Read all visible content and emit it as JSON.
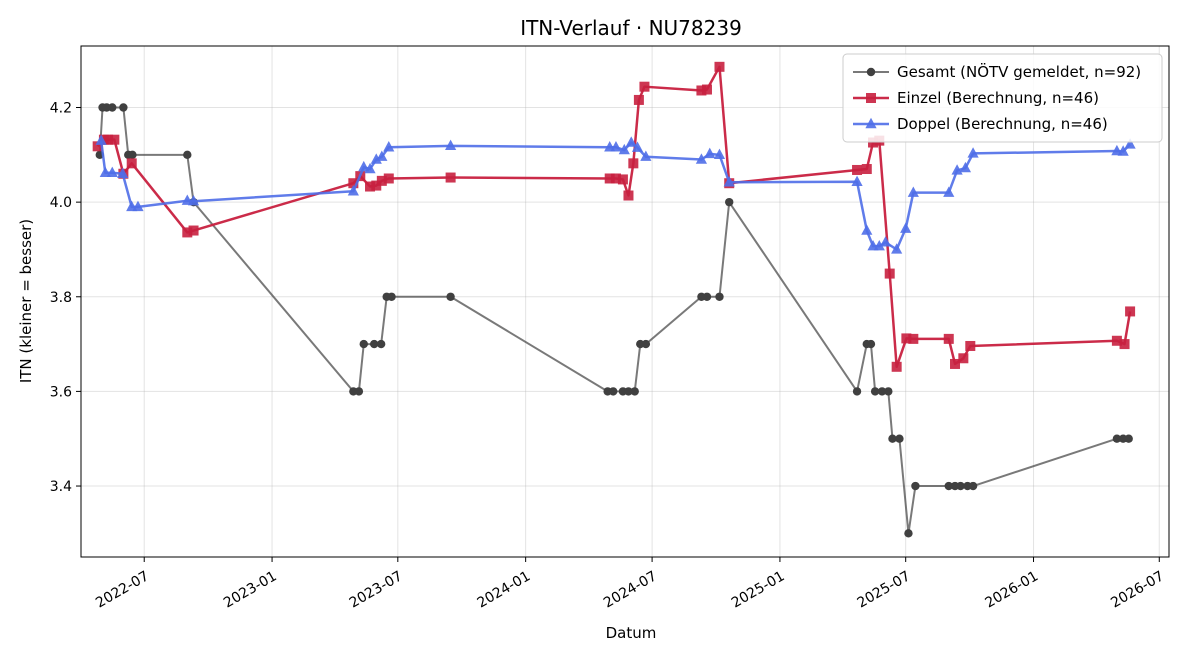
{
  "chart_data": {
    "type": "line",
    "title": "ITN-Verlauf · NU78239",
    "xlabel": "Datum",
    "ylabel": "ITN  (kleiner = besser)",
    "xlim": [
      "2022-04-01",
      "2026-07-15"
    ],
    "ylim": [
      3.25,
      4.33
    ],
    "x_ticks": [
      "2022-07",
      "2023-01",
      "2023-07",
      "2024-01",
      "2024-07",
      "2025-01",
      "2025-07",
      "2026-01",
      "2026-07"
    ],
    "y_ticks": [
      3.4,
      3.6,
      3.8,
      4.0,
      4.2
    ],
    "y_tick_labels": [
      "3.4",
      "3.6",
      "3.8",
      "4.0",
      "4.2"
    ],
    "grid": true,
    "legend_position": "top-right",
    "series": [
      {
        "name": "Gesamt (NÖTV gemeldet, n=92)",
        "color": "#404040",
        "marker": "circle",
        "points": [
          [
            "2022-04-28",
            4.1
          ],
          [
            "2022-05-02",
            4.2
          ],
          [
            "2022-05-08",
            4.2
          ],
          [
            "2022-05-16",
            4.2
          ],
          [
            "2022-06-01",
            4.2
          ],
          [
            "2022-06-08",
            4.1
          ],
          [
            "2022-06-14",
            4.1
          ],
          [
            "2022-09-01",
            4.1
          ],
          [
            "2022-09-10",
            4.0
          ],
          [
            "2023-04-28",
            3.6
          ],
          [
            "2023-05-06",
            3.6
          ],
          [
            "2023-05-13",
            3.7
          ],
          [
            "2023-05-28",
            3.7
          ],
          [
            "2023-06-07",
            3.7
          ],
          [
            "2023-06-15",
            3.8
          ],
          [
            "2023-06-22",
            3.8
          ],
          [
            "2023-09-15",
            3.8
          ],
          [
            "2024-04-28",
            3.6
          ],
          [
            "2024-05-06",
            3.6
          ],
          [
            "2024-05-20",
            3.6
          ],
          [
            "2024-05-28",
            3.6
          ],
          [
            "2024-06-06",
            3.6
          ],
          [
            "2024-06-14",
            3.7
          ],
          [
            "2024-06-22",
            3.7
          ],
          [
            "2024-09-10",
            3.8
          ],
          [
            "2024-09-18",
            3.8
          ],
          [
            "2024-10-06",
            3.8
          ],
          [
            "2024-10-20",
            4.0
          ],
          [
            "2025-04-22",
            3.6
          ],
          [
            "2025-05-06",
            3.7
          ],
          [
            "2025-05-12",
            3.7
          ],
          [
            "2025-05-18",
            3.6
          ],
          [
            "2025-05-28",
            3.6
          ],
          [
            "2025-06-06",
            3.6
          ],
          [
            "2025-06-12",
            3.5
          ],
          [
            "2025-06-22",
            3.5
          ],
          [
            "2025-07-05",
            3.3
          ],
          [
            "2025-07-15",
            3.4
          ],
          [
            "2025-09-01",
            3.4
          ],
          [
            "2025-09-10",
            3.4
          ],
          [
            "2025-09-18",
            3.4
          ],
          [
            "2025-09-28",
            3.4
          ],
          [
            "2025-10-06",
            3.4
          ],
          [
            "2026-05-01",
            3.5
          ],
          [
            "2026-05-10",
            3.5
          ],
          [
            "2026-05-18",
            3.5
          ]
        ]
      },
      {
        "name": "Einzel (Berechnung, n=46)",
        "color": "#c8203f",
        "marker": "square",
        "points": [
          [
            "2022-04-25",
            4.118
          ],
          [
            "2022-05-04",
            4.132
          ],
          [
            "2022-05-10",
            4.132
          ],
          [
            "2022-05-19",
            4.132
          ],
          [
            "2022-06-01",
            4.06
          ],
          [
            "2022-06-13",
            4.082
          ],
          [
            "2022-09-01",
            3.936
          ],
          [
            "2022-09-10",
            3.94
          ],
          [
            "2023-04-28",
            4.04
          ],
          [
            "2023-05-08",
            4.055
          ],
          [
            "2023-05-22",
            4.033
          ],
          [
            "2023-05-31",
            4.035
          ],
          [
            "2023-06-08",
            4.045
          ],
          [
            "2023-06-18",
            4.05
          ],
          [
            "2023-09-15",
            4.052
          ],
          [
            "2024-05-01",
            4.05
          ],
          [
            "2024-05-10",
            4.05
          ],
          [
            "2024-05-20",
            4.048
          ],
          [
            "2024-05-28",
            4.014
          ],
          [
            "2024-06-04",
            4.082
          ],
          [
            "2024-06-12",
            4.216
          ],
          [
            "2024-06-20",
            4.244
          ],
          [
            "2024-09-10",
            4.236
          ],
          [
            "2024-09-18",
            4.238
          ],
          [
            "2024-10-06",
            4.286
          ],
          [
            "2024-10-20",
            4.04
          ],
          [
            "2025-04-22",
            4.068
          ],
          [
            "2025-05-06",
            4.07
          ],
          [
            "2025-05-15",
            4.126
          ],
          [
            "2025-05-24",
            4.13
          ],
          [
            "2025-06-08",
            3.849
          ],
          [
            "2025-06-18",
            3.652
          ],
          [
            "2025-07-02",
            3.712
          ],
          [
            "2025-07-12",
            3.711
          ],
          [
            "2025-09-01",
            3.711
          ],
          [
            "2025-09-10",
            3.658
          ],
          [
            "2025-09-22",
            3.67
          ],
          [
            "2025-10-02",
            3.696
          ],
          [
            "2026-05-01",
            3.707
          ],
          [
            "2026-05-12",
            3.7
          ],
          [
            "2026-05-20",
            3.769
          ]
        ]
      },
      {
        "name": "Doppel (Berechnung, n=46)",
        "color": "#4f6ee8",
        "marker": "triangle",
        "points": [
          [
            "2022-04-30",
            4.13
          ],
          [
            "2022-05-06",
            4.062
          ],
          [
            "2022-05-16",
            4.062
          ],
          [
            "2022-05-31",
            4.06
          ],
          [
            "2022-06-13",
            3.99
          ],
          [
            "2022-06-22",
            3.99
          ],
          [
            "2022-09-01",
            4.003
          ],
          [
            "2022-09-10",
            4.002
          ],
          [
            "2023-04-28",
            4.023
          ],
          [
            "2023-05-13",
            4.074
          ],
          [
            "2023-05-22",
            4.07
          ],
          [
            "2023-05-31",
            4.09
          ],
          [
            "2023-06-08",
            4.096
          ],
          [
            "2023-06-18",
            4.116
          ],
          [
            "2023-09-15",
            4.119
          ],
          [
            "2024-05-01",
            4.116
          ],
          [
            "2024-05-10",
            4.116
          ],
          [
            "2024-05-22",
            4.11
          ],
          [
            "2024-06-01",
            4.126
          ],
          [
            "2024-06-10",
            4.115
          ],
          [
            "2024-06-22",
            4.096
          ],
          [
            "2024-09-10",
            4.09
          ],
          [
            "2024-09-22",
            4.102
          ],
          [
            "2024-10-06",
            4.1
          ],
          [
            "2024-10-20",
            4.042
          ],
          [
            "2025-04-22",
            4.043
          ],
          [
            "2025-05-06",
            3.94
          ],
          [
            "2025-05-15",
            3.907
          ],
          [
            "2025-05-24",
            3.907
          ],
          [
            "2025-06-02",
            3.915
          ],
          [
            "2025-06-18",
            3.9
          ],
          [
            "2025-07-01",
            3.944
          ],
          [
            "2025-07-12",
            4.02
          ],
          [
            "2025-09-01",
            4.02
          ],
          [
            "2025-09-13",
            4.067
          ],
          [
            "2025-09-25",
            4.072
          ],
          [
            "2025-10-06",
            4.103
          ],
          [
            "2026-05-01",
            4.108
          ],
          [
            "2026-05-10",
            4.107
          ],
          [
            "2026-05-20",
            4.122
          ]
        ]
      }
    ]
  }
}
